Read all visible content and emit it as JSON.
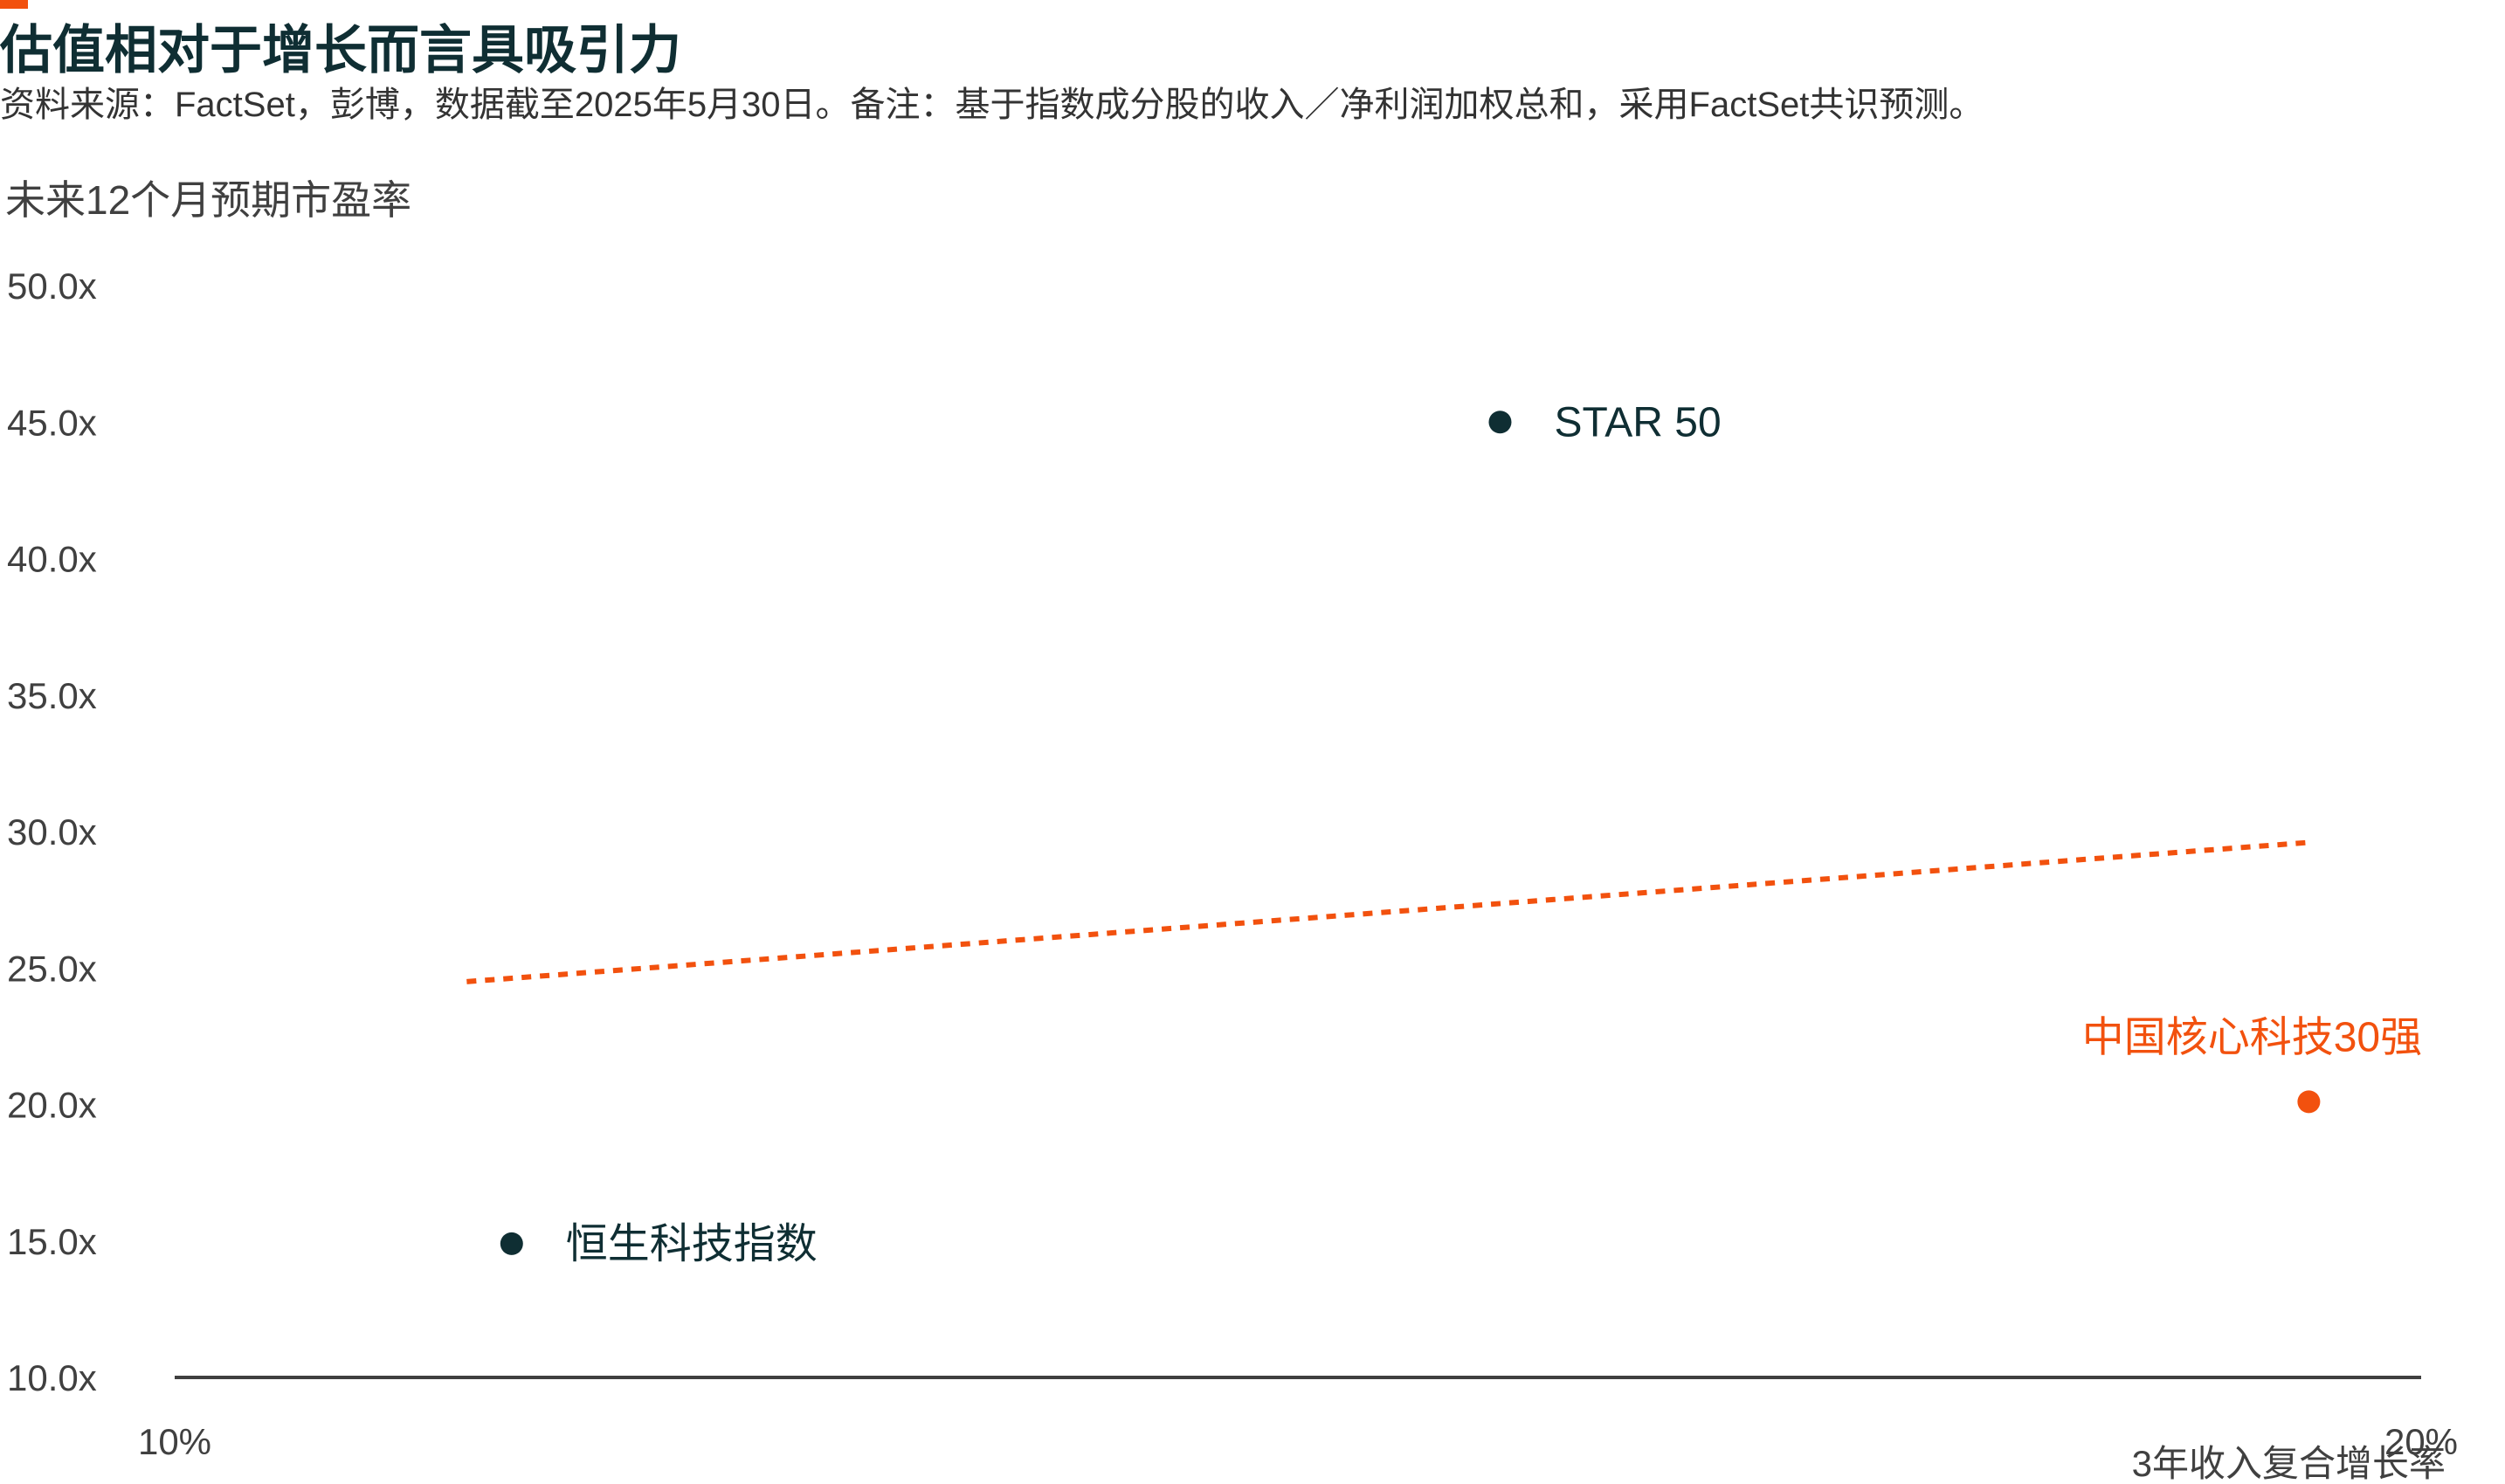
{
  "title": "估值相对于增长而言具吸引力",
  "subtitle": "资料来源：FactSet，彭博，数据截至2025年5月30日。备注：基于指数成分股的收入／净利润加权总和，采用FactSet共识预测。",
  "chart_data": {
    "type": "scatter",
    "ylabel": "未来12个月预期市盈率",
    "xlabel": "3年收入复合增长率",
    "xlim": [
      10,
      20
    ],
    "ylim": [
      10,
      50
    ],
    "x_ticks": [
      "10%",
      "20%"
    ],
    "y_ticks": [
      "50.0x",
      "45.0x",
      "40.0x",
      "35.0x",
      "30.0x",
      "25.0x",
      "20.0x",
      "15.0x",
      "10.0x"
    ],
    "y_tick_values": [
      50,
      45,
      40,
      35,
      30,
      25,
      20,
      15,
      10
    ],
    "grid": false,
    "points": [
      {
        "label": "STAR 50",
        "x": 15.9,
        "y": 45.0,
        "color": "#0f2e33",
        "label_position": "right"
      },
      {
        "label": "恒生科技指数",
        "x": 11.5,
        "y": 14.9,
        "color": "#0f2e33",
        "label_position": "right"
      },
      {
        "label": "中国核心科技30强",
        "x": 19.5,
        "y": 20.1,
        "color": "#f2510e",
        "label_position": "above"
      }
    ],
    "trendline": {
      "x": [
        11.3,
        19.5
      ],
      "y": [
        24.5,
        29.6
      ],
      "color": "#f2510e",
      "style": "dotted"
    }
  },
  "colors": {
    "accent": "#f2510e",
    "dark": "#0f2e33",
    "axis": "#404040",
    "text": "#333333"
  }
}
